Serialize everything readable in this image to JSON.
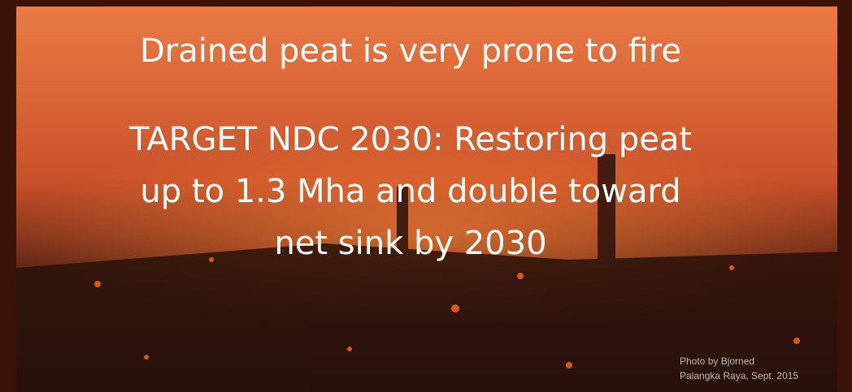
{
  "heading": "Drained peat is very prone to fire",
  "target": [
    "TARGET NDC 2030: Restoring peat",
    "up to 1.3 Mha and double toward",
    "net sink by 2030"
  ],
  "credit": [
    "Photo by Bjorned",
    "Palangka Raya, Sept. 2015"
  ]
}
